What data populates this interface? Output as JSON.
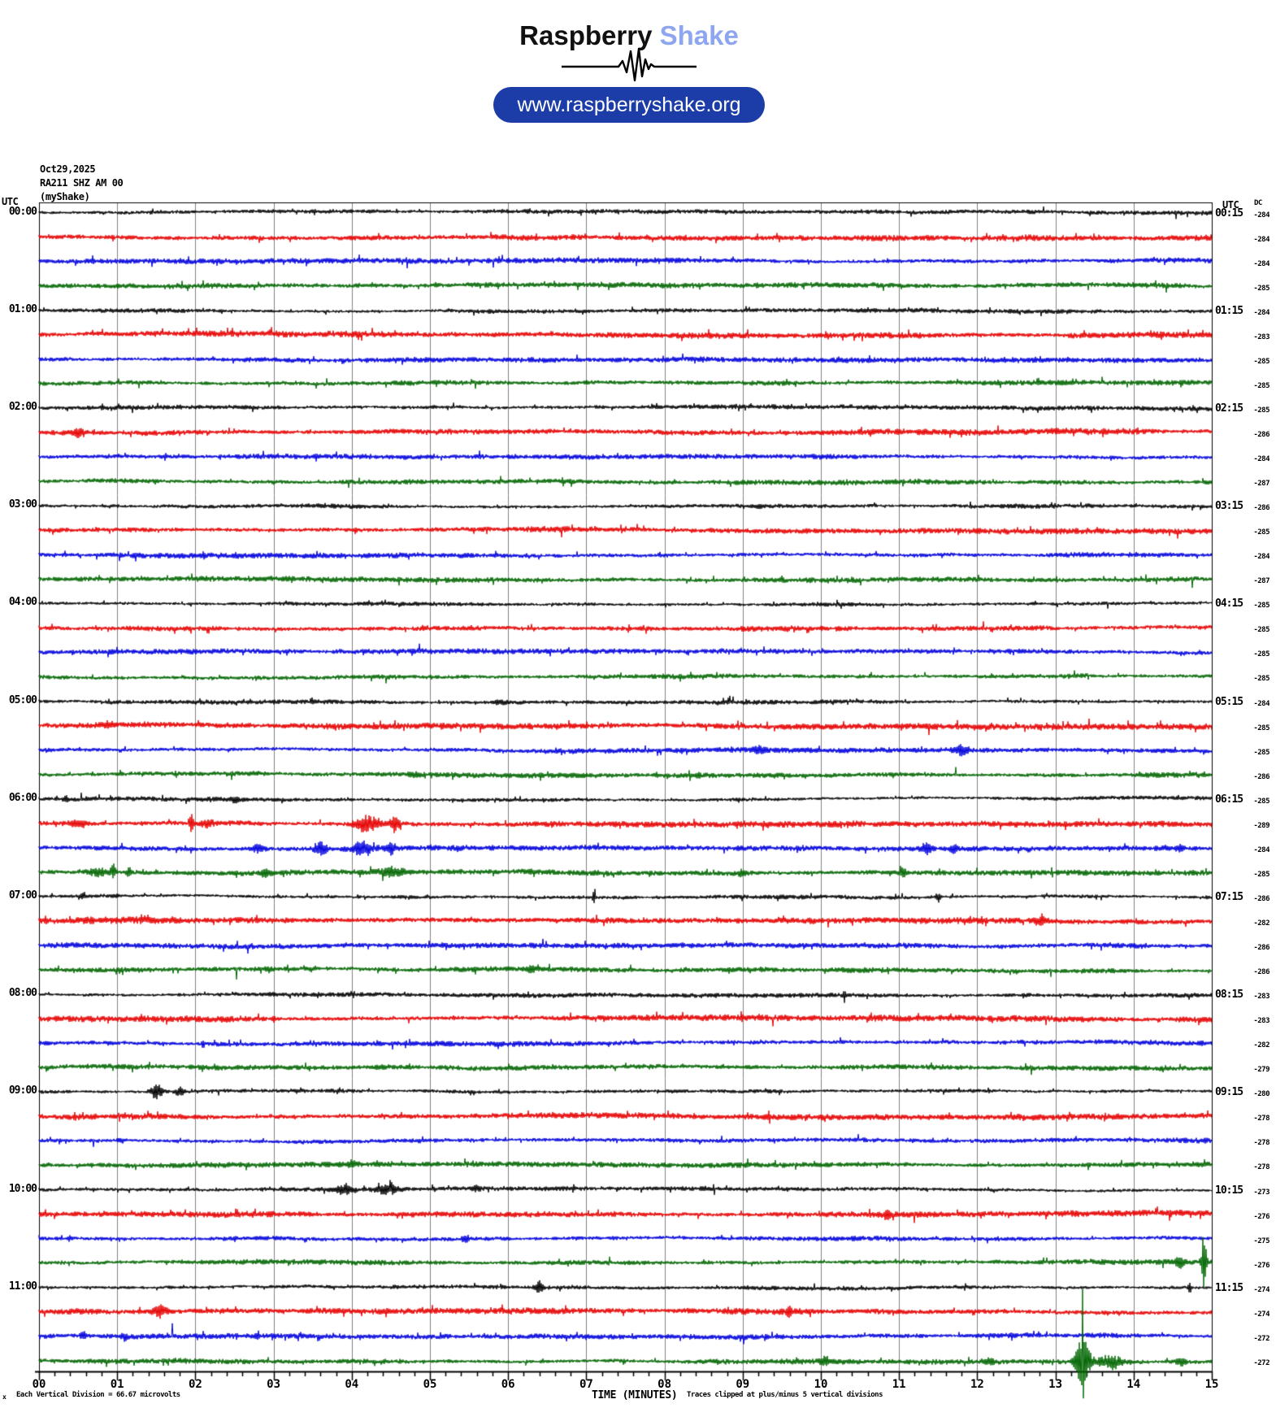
{
  "header": {
    "brand": "Raspberry",
    "brand_accent": "Shake",
    "brand_accent_color": "#8ea6ef",
    "url": "www.raspberryshake.org",
    "pill_color": "#1c3ca8"
  },
  "info": {
    "date": "Oct29,2025",
    "station": "RA211 SHZ AM 00",
    "network": "(myShake)"
  },
  "labels": {
    "utc_left": "UTC",
    "utc_right": "UTC",
    "dc_header": "DC"
  },
  "footer": {
    "axis_marker": "x",
    "left_note": "Each Vertical Division =   66.67 microvolts",
    "xlabel": "TIME (MINUTES)",
    "right_note": "Traces clipped at plus/minus 5 vertical divisions"
  },
  "chart_data": {
    "type": "line",
    "title": "RA211 SHZ AM 00 (myShake) helicorder, Oct29,2025",
    "x_ticks": [
      "00",
      "01",
      "02",
      "03",
      "04",
      "05",
      "06",
      "07",
      "08",
      "09",
      "10",
      "11",
      "12",
      "13",
      "14",
      "15"
    ],
    "x_label": "TIME (MINUTES)",
    "minutes_per_row": 15,
    "grid": true,
    "trace_colors": {
      "black": "#000000",
      "red": "#e60000",
      "blue": "#0000dd",
      "green": "#006600"
    },
    "noise_amp": {
      "black": 2.2,
      "red": 3.0,
      "blue": 2.6,
      "green": 2.6
    },
    "rows": [
      {
        "utc_left": "00:00",
        "utc_right": "00:15",
        "color": "black",
        "dc": -284,
        "events": []
      },
      {
        "utc_left": "",
        "utc_right": "",
        "color": "red",
        "dc": -284,
        "events": []
      },
      {
        "utc_left": "",
        "utc_right": "",
        "color": "blue",
        "dc": -284,
        "events": []
      },
      {
        "utc_left": "",
        "utc_right": "",
        "color": "green",
        "dc": -285,
        "events": []
      },
      {
        "utc_left": "01:00",
        "utc_right": "01:15",
        "color": "black",
        "dc": -284,
        "events": []
      },
      {
        "utc_left": "",
        "utc_right": "",
        "color": "red",
        "dc": -283,
        "events": []
      },
      {
        "utc_left": "",
        "utc_right": "",
        "color": "blue",
        "dc": -285,
        "events": []
      },
      {
        "utc_left": "",
        "utc_right": "",
        "color": "green",
        "dc": -285,
        "events": []
      },
      {
        "utc_left": "02:00",
        "utc_right": "02:15",
        "color": "black",
        "dc": -285,
        "events": []
      },
      {
        "utc_left": "",
        "utc_right": "",
        "color": "red",
        "dc": -286,
        "events": [
          {
            "m": 0.5,
            "a": 4,
            "w": 5
          }
        ]
      },
      {
        "utc_left": "",
        "utc_right": "",
        "color": "blue",
        "dc": -284,
        "events": []
      },
      {
        "utc_left": "",
        "utc_right": "",
        "color": "green",
        "dc": -287,
        "events": []
      },
      {
        "utc_left": "03:00",
        "utc_right": "03:15",
        "color": "black",
        "dc": -286,
        "events": []
      },
      {
        "utc_left": "",
        "utc_right": "",
        "color": "red",
        "dc": -285,
        "events": [
          {
            "m": 4.05,
            "a": 3,
            "w": 1.5
          }
        ]
      },
      {
        "utc_left": "",
        "utc_right": "",
        "color": "blue",
        "dc": -284,
        "events": [
          {
            "m": 2.1,
            "a": 4,
            "w": 1.5
          }
        ]
      },
      {
        "utc_left": "",
        "utc_right": "",
        "color": "green",
        "dc": -287,
        "events": []
      },
      {
        "utc_left": "04:00",
        "utc_right": "04:15",
        "color": "black",
        "dc": -285,
        "events": []
      },
      {
        "utc_left": "",
        "utc_right": "",
        "color": "red",
        "dc": -285,
        "events": []
      },
      {
        "utc_left": "",
        "utc_right": "",
        "color": "blue",
        "dc": -285,
        "events": []
      },
      {
        "utc_left": "",
        "utc_right": "",
        "color": "green",
        "dc": -285,
        "events": []
      },
      {
        "utc_left": "05:00",
        "utc_right": "05:15",
        "color": "black",
        "dc": -284,
        "events": [
          {
            "m": 5.9,
            "a": 2,
            "w": 8
          }
        ]
      },
      {
        "utc_left": "",
        "utc_right": "",
        "color": "red",
        "dc": -285,
        "events": [
          {
            "m": 0.9,
            "a": 3,
            "w": 6
          }
        ]
      },
      {
        "utc_left": "",
        "utc_right": "",
        "color": "blue",
        "dc": -285,
        "events": [
          {
            "m": 9.2,
            "a": 4,
            "w": 5
          },
          {
            "m": 11.8,
            "a": 6,
            "w": 5
          }
        ]
      },
      {
        "utc_left": "",
        "utc_right": "",
        "color": "green",
        "dc": -286,
        "events": [
          {
            "m": 4.8,
            "a": 3,
            "w": 6
          }
        ]
      },
      {
        "utc_left": "06:00",
        "utc_right": "06:15",
        "color": "black",
        "dc": -285,
        "events": [
          {
            "m": 0.35,
            "a": 4,
            "w": 2
          },
          {
            "m": 2.5,
            "a": 3,
            "w": 4
          }
        ]
      },
      {
        "utc_left": "",
        "utc_right": "",
        "color": "red",
        "dc": -289,
        "events": [
          {
            "m": 0.5,
            "a": 4,
            "w": 8
          },
          {
            "m": 1.95,
            "a": 12,
            "w": 2
          },
          {
            "m": 2.15,
            "a": 5,
            "w": 6
          },
          {
            "m": 4.2,
            "a": 10,
            "w": 10
          },
          {
            "m": 4.55,
            "a": 7,
            "w": 5
          }
        ]
      },
      {
        "utc_left": "",
        "utc_right": "",
        "color": "blue",
        "dc": -284,
        "events": [
          {
            "m": 2.8,
            "a": 5,
            "w": 6
          },
          {
            "m": 3.6,
            "a": 8,
            "w": 5
          },
          {
            "m": 4.15,
            "a": 9,
            "w": 8
          },
          {
            "m": 4.5,
            "a": 6,
            "w": 5
          },
          {
            "m": 11.35,
            "a": 7,
            "w": 4
          },
          {
            "m": 11.7,
            "a": 6,
            "w": 3
          },
          {
            "m": 14.6,
            "a": 4,
            "w": 3
          }
        ]
      },
      {
        "utc_left": "",
        "utc_right": "",
        "color": "green",
        "dc": -285,
        "events": [
          {
            "m": 0.75,
            "a": 6,
            "w": 8
          },
          {
            "m": 0.95,
            "a": 9,
            "w": 2.5
          },
          {
            "m": 1.15,
            "a": 7,
            "w": 2.5
          },
          {
            "m": 2.9,
            "a": 4,
            "w": 4
          },
          {
            "m": 4.5,
            "a": 5,
            "w": 12
          },
          {
            "m": 9.0,
            "a": 4,
            "w": 4
          },
          {
            "m": 11.05,
            "a": 6,
            "w": 3
          }
        ]
      },
      {
        "utc_left": "07:00",
        "utc_right": "07:15",
        "color": "black",
        "dc": -286,
        "events": [
          {
            "m": 7.1,
            "a": 12,
            "w": 1.2
          },
          {
            "m": 11.5,
            "a": 6,
            "w": 2
          },
          {
            "m": 0.55,
            "a": 3,
            "w": 2
          }
        ]
      },
      {
        "utc_left": "",
        "utc_right": "",
        "color": "red",
        "dc": -282,
        "gain": 1.15,
        "events": [
          {
            "m": 12.8,
            "a": 4,
            "w": 5
          }
        ]
      },
      {
        "utc_left": "",
        "utc_right": "",
        "color": "blue",
        "dc": -286,
        "events": []
      },
      {
        "utc_left": "",
        "utc_right": "",
        "color": "green",
        "dc": -286,
        "events": [
          {
            "m": 6.3,
            "a": 3,
            "w": 4
          }
        ]
      },
      {
        "utc_left": "08:00",
        "utc_right": "08:15",
        "color": "black",
        "dc": -283,
        "events": [
          {
            "m": 10.3,
            "a": 4,
            "w": 1.5
          }
        ]
      },
      {
        "utc_left": "",
        "utc_right": "",
        "color": "red",
        "dc": -283,
        "events": [
          {
            "m": 3.0,
            "a": 4,
            "w": 1.5
          }
        ]
      },
      {
        "utc_left": "",
        "utc_right": "",
        "color": "blue",
        "dc": -282,
        "events": [
          {
            "m": 2.1,
            "a": 4,
            "w": 1.5
          }
        ]
      },
      {
        "utc_left": "",
        "utc_right": "",
        "color": "green",
        "dc": -279,
        "events": []
      },
      {
        "utc_left": "09:00",
        "utc_right": "09:15",
        "color": "black",
        "dc": -280,
        "events": [
          {
            "m": 1.5,
            "a": 9,
            "w": 5
          },
          {
            "m": 1.8,
            "a": 5,
            "w": 4
          }
        ]
      },
      {
        "utc_left": "",
        "utc_right": "",
        "color": "red",
        "dc": -278,
        "events": []
      },
      {
        "utc_left": "",
        "utc_right": "",
        "color": "blue",
        "dc": -278,
        "events": [
          {
            "m": 1.05,
            "a": 3,
            "w": 3
          }
        ]
      },
      {
        "utc_left": "",
        "utc_right": "",
        "color": "green",
        "dc": -278,
        "events": [
          {
            "m": 4.0,
            "a": 3,
            "w": 4
          }
        ]
      },
      {
        "utc_left": "10:00",
        "utc_right": "10:15",
        "color": "black",
        "dc": -273,
        "events": [
          {
            "m": 3.9,
            "a": 6,
            "w": 7
          },
          {
            "m": 4.45,
            "a": 6,
            "w": 9
          },
          {
            "m": 5.6,
            "a": 3,
            "w": 3
          }
        ]
      },
      {
        "utc_left": "",
        "utc_right": "",
        "color": "red",
        "dc": -276,
        "events": [
          {
            "m": 10.85,
            "a": 5,
            "w": 3
          }
        ]
      },
      {
        "utc_left": "",
        "utc_right": "",
        "color": "blue",
        "dc": -275,
        "events": [
          {
            "m": 0.4,
            "a": 3,
            "w": 3
          },
          {
            "m": 5.45,
            "a": 4,
            "w": 3
          }
        ]
      },
      {
        "utc_left": "",
        "utc_right": "",
        "color": "green",
        "dc": -276,
        "events": [
          {
            "m": 14.6,
            "a": 7,
            "w": 4
          },
          {
            "m": 14.9,
            "a": 38,
            "w": 2
          }
        ]
      },
      {
        "utc_left": "11:00",
        "utc_right": "11:15",
        "color": "black",
        "dc": -274,
        "events": [
          {
            "m": 6.4,
            "a": 8,
            "w": 3
          },
          {
            "m": 14.72,
            "a": 7,
            "w": 1.5
          }
        ]
      },
      {
        "utc_left": "",
        "utc_right": "",
        "color": "red",
        "dc": -274,
        "events": [
          {
            "m": 1.55,
            "a": 7,
            "w": 6
          },
          {
            "m": 9.6,
            "a": 8,
            "w": 2.5
          }
        ]
      },
      {
        "utc_left": "",
        "utc_right": "",
        "color": "blue",
        "dc": -272,
        "events": [
          {
            "m": 0.57,
            "a": 7,
            "w": 2.5
          },
          {
            "m": 1.1,
            "a": 4,
            "w": 3
          }
        ]
      },
      {
        "utc_left": "",
        "utc_right": "",
        "color": "green",
        "dc": -272,
        "events": [
          {
            "m": 10.05,
            "a": 5,
            "w": 4
          },
          {
            "m": 12.15,
            "a": 4,
            "w": 4
          },
          {
            "m": 13.3,
            "a": 12,
            "w": 4
          },
          {
            "m": 13.36,
            "a": 24,
            "w": 6
          },
          {
            "m": 13.35,
            "a": 110,
            "w": 0.6
          },
          {
            "m": 13.7,
            "a": 9,
            "w": 9
          },
          {
            "m": 14.6,
            "a": 5,
            "w": 5
          }
        ]
      }
    ]
  }
}
